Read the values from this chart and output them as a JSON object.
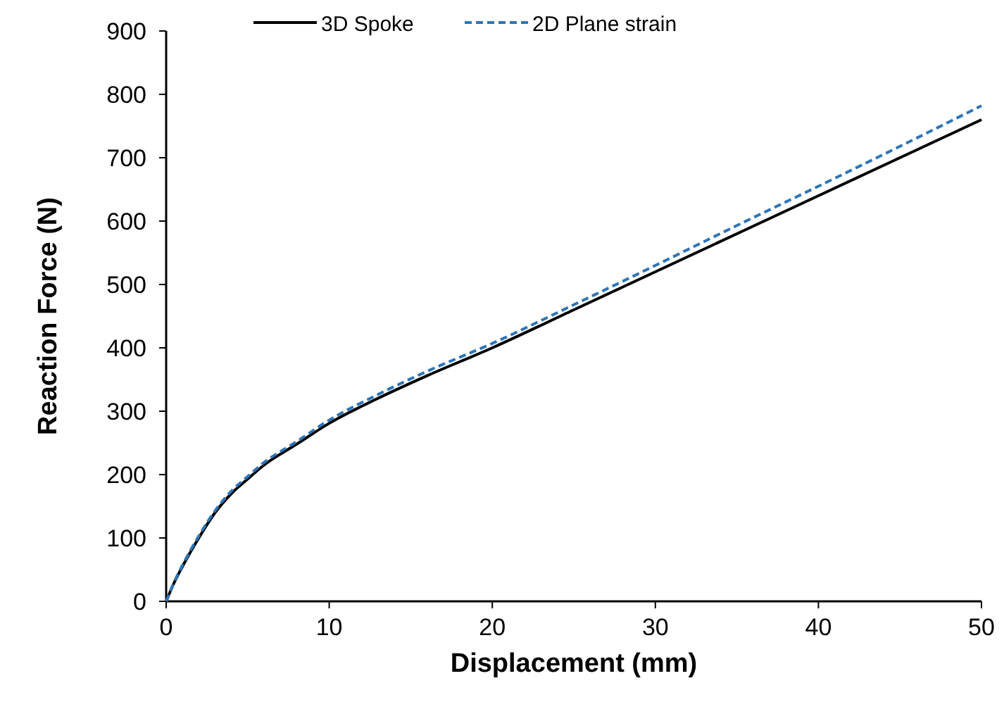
{
  "chart_data": {
    "type": "line",
    "xlabel": "Displacement (mm)",
    "ylabel": "Reaction Force (N)",
    "xlim": [
      0,
      50
    ],
    "xticks": [
      0,
      10,
      20,
      30,
      40,
      50
    ],
    "ylim": [
      0,
      900
    ],
    "yticks": [
      0,
      100,
      200,
      300,
      400,
      500,
      600,
      700,
      800,
      900
    ],
    "grid": false,
    "legend": "top",
    "series": [
      {
        "name": "3D Spoke",
        "color": "#000000",
        "line_style": "solid",
        "x": [
          0,
          0.5,
          1,
          2,
          3,
          4,
          5,
          6,
          8,
          10,
          12.8,
          16,
          20,
          25,
          30,
          35,
          40,
          45,
          50
        ],
        "values": [
          0,
          30,
          55,
          100,
          140,
          170,
          193,
          215,
          248,
          281,
          318,
          356,
          400,
          460,
          520,
          580,
          640,
          700,
          760
        ]
      },
      {
        "name": "2D Plane strain",
        "color": "#2e75b6",
        "line_style": "dashed",
        "x": [
          0,
          0.5,
          1,
          2,
          3,
          4,
          5,
          6,
          8,
          10,
          12.8,
          16,
          20,
          25,
          30,
          35,
          40,
          45,
          50
        ],
        "values": [
          0,
          31,
          57,
          103,
          143,
          174,
          197,
          219,
          252,
          286,
          324,
          363,
          407,
          468,
          530,
          593,
          655,
          718,
          782
        ]
      }
    ]
  }
}
